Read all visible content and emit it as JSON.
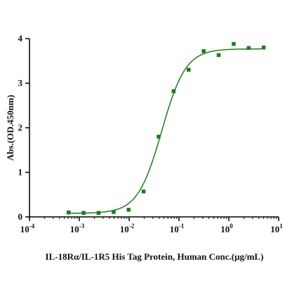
{
  "chart_data": {
    "type": "scatter",
    "xscale": "log",
    "xlabel": "IL-18Rα/IL-1R5 His Tag Protein, Human Conc.(μg/mL)",
    "ylabel": "Abs.(OD.450nm)",
    "xlim": [
      0.0001,
      10
    ],
    "ylim": [
      0,
      4
    ],
    "x_ticks": [
      "10",
      "10",
      "10",
      "10",
      "10",
      "10"
    ],
    "x_tick_exponents": [
      "-4",
      "-3",
      "-2",
      "-1",
      "0",
      "1"
    ],
    "y_ticks": [
      "0",
      "1",
      "2",
      "3",
      "4"
    ],
    "grid": false,
    "colors": {
      "series": "#1e7b1e",
      "axis": "#000000"
    },
    "series": [
      {
        "x": [
          0.00061,
          0.00122,
          0.00244,
          0.00488,
          0.00977,
          0.0195,
          0.039,
          0.078,
          0.156,
          0.313,
          0.625,
          1.25,
          2.5,
          5.0
        ],
        "y": [
          0.1,
          0.09,
          0.09,
          0.11,
          0.16,
          0.57,
          1.8,
          2.82,
          3.3,
          3.72,
          3.63,
          3.88,
          3.79,
          3.8
        ]
      }
    ],
    "fit": {
      "type": "4PL",
      "bottom": 0.08,
      "top": 3.77,
      "ec50": 0.045,
      "hill": 1.8
    }
  }
}
